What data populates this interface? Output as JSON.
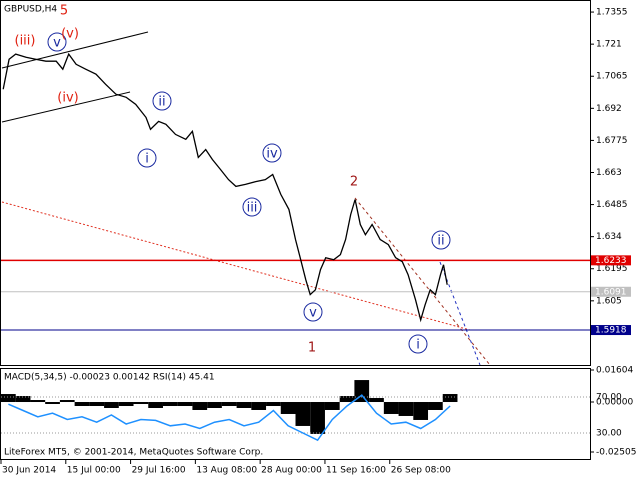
{
  "chart_data": [
    {
      "type": "line",
      "title": "GBPUSD,H4",
      "color": "#000000",
      "x": [
        3,
        11,
        20,
        34,
        47,
        61,
        75,
        84,
        92,
        102,
        115,
        129,
        142,
        156,
        170,
        183,
        197,
        203,
        214,
        224,
        237,
        251,
        260,
        268,
        278,
        287,
        298,
        309,
        319,
        332,
        346,
        359,
        369,
        380,
        391,
        400,
        407,
        414,
        420,
        427,
        434,
        441,
        452,
        461,
        468,
        475,
        481,
        488,
        495,
        504,
        515,
        526,
        536,
        545,
        553,
        563,
        570,
        576,
        583,
        590,
        597,
        601,
        606
      ],
      "values": [
        1.7006,
        1.7142,
        1.7165,
        1.7151,
        1.7142,
        1.7133,
        1.7133,
        1.7097,
        1.7165,
        1.7119,
        1.7097,
        1.7074,
        1.7029,
        1.6984,
        1.697,
        1.6938,
        1.6879,
        1.6825,
        1.6861,
        1.6848,
        1.6802,
        1.678,
        1.6816,
        1.6698,
        1.6734,
        1.6689,
        1.6644,
        1.6598,
        1.6567,
        1.6576,
        1.6589,
        1.6598,
        1.6621,
        1.6531,
        1.6463,
        1.6327,
        1.6236,
        1.6145,
        1.6078,
        1.61,
        1.6191,
        1.6245,
        1.6236,
        1.6259,
        1.6327,
        1.644,
        1.6508,
        1.6395,
        1.6349,
        1.6395,
        1.6327,
        1.6304,
        1.6245,
        1.6227,
        1.6168,
        1.6055,
        1.5964,
        1.6032,
        1.61,
        1.6078,
        1.6168,
        1.6213,
        1.6123
      ],
      "xlim": [
        0,
        800
      ],
      "xticks": [
        {
          "value": 0,
          "label": "30 Jun 2014"
        },
        {
          "value": 88,
          "label": "15 Jul 00:00"
        },
        {
          "value": 176,
          "label": "29 Jul 16:00"
        },
        {
          "value": 264,
          "label": "13 Aug 08:00"
        },
        {
          "value": 352,
          "label": "28 Aug 00:00"
        },
        {
          "value": 440,
          "label": "11 Sep 16:00"
        },
        {
          "value": 528,
          "label": "26 Sep 08:00"
        }
      ],
      "ylim": [
        1.576,
        1.7405
      ],
      "yticks": [
        1.7355,
        1.721,
        1.7065,
        1.692,
        1.6775,
        1.663,
        1.6485,
        1.634,
        1.6195,
        1.605
      ],
      "levels": [
        {
          "value": 1.6233,
          "color": "#e00000"
        },
        {
          "value": 1.6091,
          "color": "#c0c0c0"
        },
        {
          "value": 1.5918,
          "color": "#00008b"
        }
      ],
      "annotations": [
        "(iii)",
        "v",
        "(v)",
        "5",
        "(iv)",
        "ii",
        "i",
        "iv",
        "iii",
        "v",
        "1",
        "2",
        "i",
        "ii"
      ]
    },
    {
      "type": "bar",
      "title": "MACD(5,34,5) -0.00023 0.00142 RSI(14) 45.41",
      "color": "#000000",
      "x": [
        0,
        20,
        40,
        60,
        80,
        100,
        120,
        140,
        160,
        180,
        200,
        220,
        240,
        260,
        280,
        300,
        320,
        340,
        360,
        380,
        400,
        420,
        440,
        460,
        480,
        500,
        520,
        540,
        560,
        580,
        600
      ],
      "values": [
        0.004,
        0.003,
        0.001,
        -0.001,
        0.001,
        -0.002,
        -0.002,
        -0.003,
        -0.002,
        -0.001,
        -0.003,
        -0.002,
        -0.002,
        -0.004,
        -0.003,
        -0.002,
        -0.003,
        -0.004,
        -0.002,
        -0.006,
        -0.012,
        -0.016,
        -0.004,
        0.003,
        0.011,
        0.002,
        -0.006,
        -0.007,
        -0.009,
        -0.004,
        0.004
      ],
      "series": [
        {
          "color": "#1e90ff",
          "axis": "y2",
          "values": [
            62,
            55,
            48,
            52,
            45,
            48,
            42,
            50,
            40,
            45,
            44,
            38,
            40,
            35,
            42,
            45,
            38,
            42,
            55,
            38,
            30,
            22,
            45,
            60,
            72,
            52,
            40,
            42,
            35,
            45,
            60
          ]
        }
      ],
      "ylim": [
        -0.02505,
        0.01604
      ],
      "yticks": [
        0.01604,
        {
          "value": 0,
          "label": "0.00000"
        },
        -0.02505
      ],
      "y2lim": [
        0,
        100
      ],
      "y2ticks": [
        {
          "value": 70,
          "label": "70.00"
        },
        {
          "value": 30,
          "label": "30.00"
        }
      ]
    }
  ],
  "footer": "LiteForex MT5, © 2001-2014, MetaQuotes Software Corp."
}
